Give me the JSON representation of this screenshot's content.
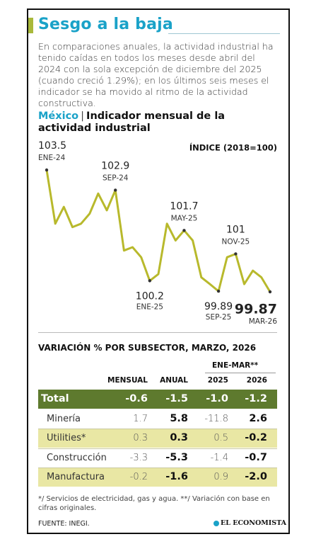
{
  "header": {
    "title": "Sesgo a la baja",
    "intro": "En comparaciones anuales, la actividad industrial ha tenido caídas en todos los meses desde abril del 2024 con la sola excepción de diciembre del 2025 (cuando creció 1.29%); en los últimos seis meses el indicador se ha movido al ritmo de la actividad constructiva."
  },
  "chart_data": {
    "type": "line",
    "country": "México",
    "title": "Indicador mensual de la actividad industrial",
    "y_label": "ÍNDICE (2018=100)",
    "x": [
      "ENE-24",
      null,
      null,
      null,
      null,
      null,
      null,
      null,
      "SEP-24",
      null,
      null,
      null,
      "ENE-25",
      null,
      null,
      null,
      "MAY-25",
      null,
      null,
      null,
      "SEP-25",
      null,
      "NOV-25",
      null,
      null,
      null,
      "MAR-26"
    ],
    "series": [
      {
        "name": "Indicador",
        "color": "#b8b92c",
        "values": [
          103.5,
          101.9,
          102.4,
          101.8,
          101.9,
          102.2,
          102.8,
          102.3,
          102.9,
          101.1,
          101.2,
          100.9,
          100.2,
          100.4,
          101.9,
          101.4,
          101.7,
          101.4,
          100.3,
          100.1,
          99.89,
          100.9,
          101,
          100.1,
          100.5,
          100.3,
          99.87
        ]
      }
    ]
  },
  "table": {
    "title": "VARIACIÓN % POR SUBSECTOR, MARZO, 2026",
    "group_header": "ENE-MAR**",
    "columns": [
      "MENSUAL",
      "ANUAL",
      "2025",
      "2026"
    ],
    "rows": [
      [
        "Total",
        "-0.6",
        "-1.5",
        "-1.0",
        "-1.2"
      ],
      [
        "Minería",
        "1.7",
        "5.8",
        "-11.8",
        "2.6"
      ],
      [
        "Utilities*",
        "0.3",
        "0.3",
        "0.5",
        "-0.2"
      ],
      [
        "Construcción",
        "-3.3",
        "-5.3",
        "-1.4",
        "-0.7"
      ],
      [
        "Manufactura",
        "-0.2",
        "-1.6",
        "0.9",
        "-2.0"
      ]
    ]
  },
  "footer": {
    "note": "*/ Servicios de electricidad, gas y agua. **/ Variación con base en cifras originales.",
    "source": "FUENTE: INEGI.",
    "brand": "EL ECONOMISTA"
  }
}
